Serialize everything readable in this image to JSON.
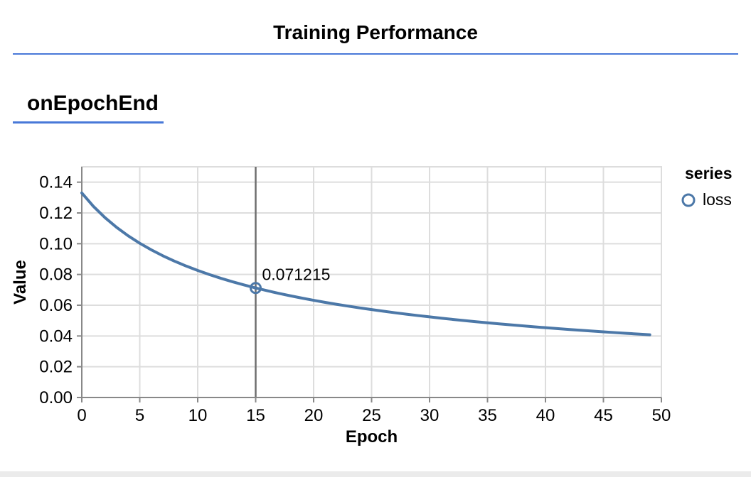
{
  "page": {
    "title": "Training Performance",
    "section_heading": "onEpochEnd"
  },
  "legend": {
    "title": "series",
    "items": [
      {
        "label": "loss",
        "color": "#4c78a8",
        "marker": "circle-outline-icon"
      }
    ]
  },
  "colors": {
    "accent_rule": "#4878d8",
    "series": "#4c78a8",
    "grid": "#dddddd",
    "axis": "#888888",
    "crosshair": "#6e6e6e",
    "text": "#000000",
    "footer_strip": "#ebebeb"
  },
  "chart_data": {
    "type": "line",
    "title": "",
    "xlabel": "Epoch",
    "ylabel": "Value",
    "xlim": [
      0,
      50
    ],
    "ylim": [
      0,
      0.15
    ],
    "xticks": [
      0,
      5,
      10,
      15,
      20,
      25,
      30,
      35,
      40,
      45,
      50
    ],
    "yticks": [
      0,
      0.02,
      0.04,
      0.06,
      0.08,
      0.1,
      0.12,
      0.14
    ],
    "grid": true,
    "legend_position": "right",
    "series": [
      {
        "name": "loss",
        "x": [
          0,
          1,
          2,
          3,
          4,
          5,
          6,
          7,
          8,
          9,
          10,
          11,
          12,
          13,
          14,
          15,
          16,
          17,
          18,
          19,
          20,
          21,
          22,
          23,
          24,
          25,
          26,
          27,
          28,
          29,
          30,
          31,
          32,
          33,
          34,
          35,
          36,
          37,
          38,
          39,
          40,
          41,
          42,
          43,
          44,
          45,
          46,
          47,
          48,
          49
        ],
        "values": [
          0.13301,
          0.12432,
          0.11698,
          0.11065,
          0.10514,
          0.1003,
          0.09599,
          0.09212,
          0.08864,
          0.08548,
          0.0826,
          0.07996,
          0.07752,
          0.07527,
          0.07318,
          0.071215,
          0.06942,
          0.06772,
          0.06612,
          0.06462,
          0.0632,
          0.06186,
          0.06059,
          0.05939,
          0.05825,
          0.05716,
          0.05612,
          0.05513,
          0.05419,
          0.05328,
          0.05242,
          0.05158,
          0.05079,
          0.05002,
          0.04928,
          0.04857,
          0.04789,
          0.04723,
          0.0466,
          0.04598,
          0.04539,
          0.04481,
          0.04426,
          0.04372,
          0.0432,
          0.04269,
          0.0422,
          0.04173,
          0.04126,
          0.04081
        ]
      }
    ],
    "highlighted_point": {
      "x": 15,
      "y": 0.071215,
      "label": "0.071215"
    }
  }
}
